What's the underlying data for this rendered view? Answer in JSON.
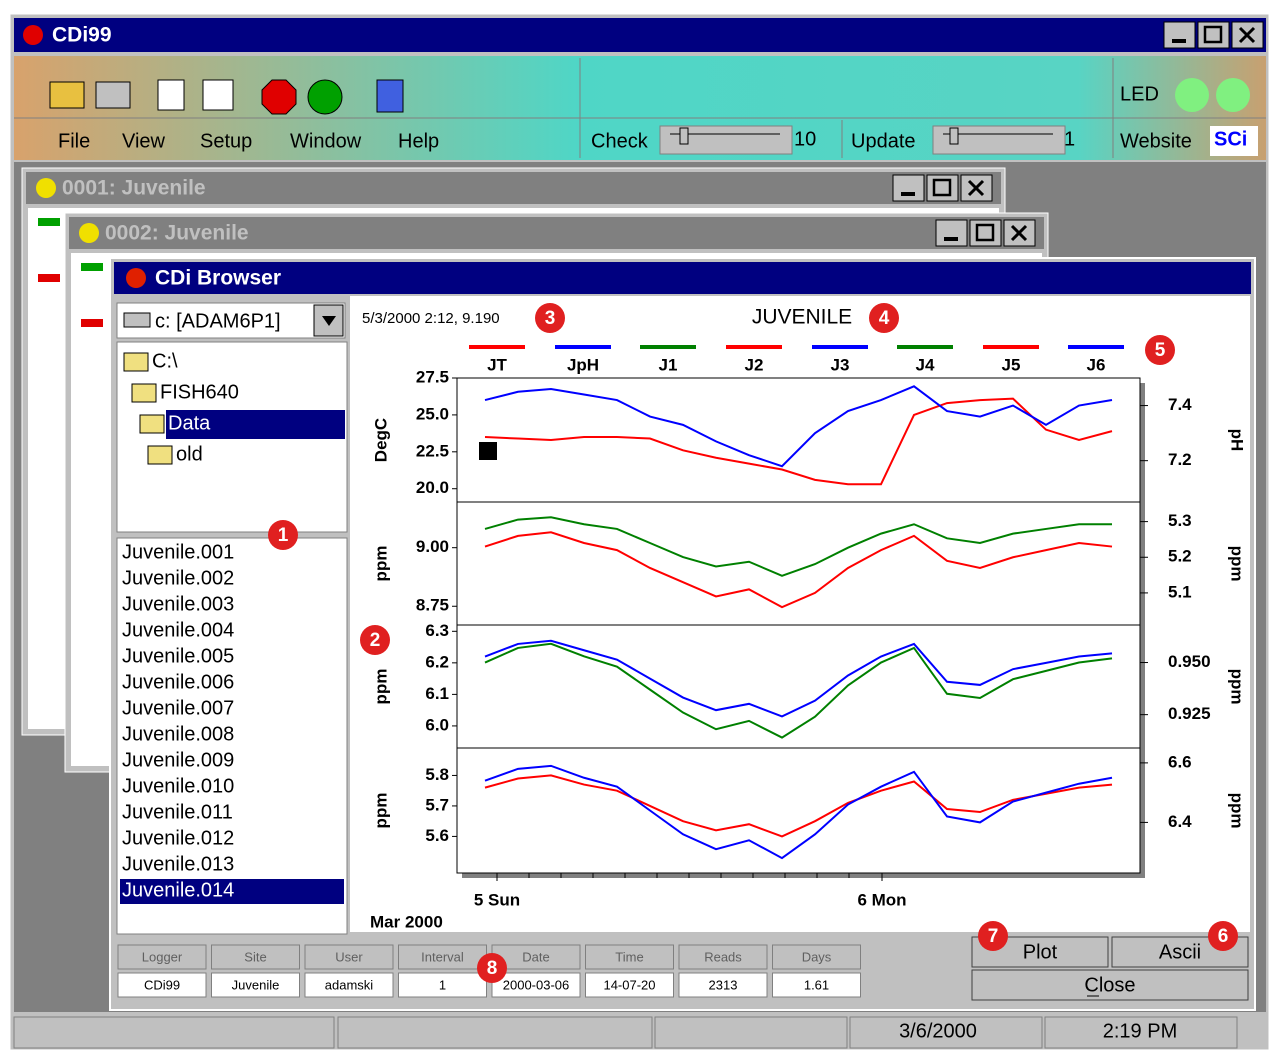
{
  "window": {
    "title": "CDi99"
  },
  "toolbar": {
    "led_label": "LED",
    "menu": [
      "File",
      "View",
      "Setup",
      "Window",
      "Help"
    ],
    "check_label": "Check",
    "check_value": 10,
    "update_label": "Update",
    "update_value": 1,
    "website_label": "Website",
    "website_logo": "SCi"
  },
  "child_windows": [
    "0001: Juvenile",
    "0002: Juvenile"
  ],
  "browser": {
    "title": "CDi Browser",
    "drive": "c: [ADAM6P1]",
    "tree": [
      "C:\\",
      "FISH640",
      "Data",
      "old"
    ],
    "tree_selected": 2,
    "files": [
      "Juvenile.001",
      "Juvenile.002",
      "Juvenile.003",
      "Juvenile.004",
      "Juvenile.005",
      "Juvenile.006",
      "Juvenile.007",
      "Juvenile.008",
      "Juvenile.009",
      "Juvenile.010",
      "Juvenile.011",
      "Juvenile.012",
      "Juvenile.013",
      "Juvenile.014"
    ],
    "files_selected": 13,
    "buttons": [
      "Plot",
      "Ascii",
      "Close"
    ],
    "info_table": {
      "headers": [
        "Logger",
        "Site",
        "User",
        "Interval",
        "Date",
        "Time",
        "Reads",
        "Days"
      ],
      "values": [
        "CDi99",
        "Juvenile",
        "adamski",
        1,
        "2000-03-06",
        "14-07-20",
        2313,
        1.61
      ]
    }
  },
  "callouts": [
    1,
    2,
    3,
    4,
    5,
    6,
    7,
    8
  ],
  "status": {
    "date": "3/6/2000",
    "time": "2:19 PM"
  },
  "chart_data": {
    "type": "line",
    "title": "JUVENILE",
    "cursor_readout": "5/3/2000 2:12, 9.190",
    "x_labels": [
      "5 Sun",
      "6 Mon"
    ],
    "x_sublabel": "Mar 2000",
    "panels": [
      {
        "ylabel": "DegC",
        "y2label": "pH",
        "ylim": [
          19.1,
          27.5
        ],
        "yticks": [
          {
            "value": 20,
            "label": "20.0"
          },
          22.5,
          {
            "value": 25,
            "label": "25.0"
          },
          27.5
        ],
        "y2lim": [
          7.05,
          7.5
        ],
        "y2ticks": [
          7.2,
          7.4
        ],
        "series": [
          {
            "name": "JT",
            "color": "#ff0000",
            "values": [
              23.5,
              23.4,
              23.3,
              23.5,
              23.5,
              23.4,
              22.6,
              22.1,
              21.7,
              21.3,
              20.6,
              20.3,
              20.3,
              25.0,
              25.8,
              26.0,
              26.1,
              24.0,
              23.3,
              23.9
            ]
          },
          {
            "name": "JpH",
            "color": "#0000ff",
            "axis": "y2",
            "values": [
              7.42,
              7.45,
              7.46,
              7.44,
              7.42,
              7.36,
              7.33,
              7.27,
              7.22,
              7.18,
              7.3,
              7.38,
              7.42,
              7.47,
              7.38,
              7.36,
              7.4,
              7.33,
              7.4,
              7.42
            ]
          }
        ]
      },
      {
        "ylabel": "ppm",
        "y2label": "ppm",
        "ylim": [
          8.67,
          9.195
        ],
        "yticks": [
          8.75,
          {
            "value": 9,
            "label": "9.00"
          }
        ],
        "y2lim": [
          5.01,
          5.355
        ],
        "y2ticks": [
          5.1,
          5.2,
          5.3
        ],
        "series": [
          {
            "name": "J1",
            "color": "#008000",
            "values": [
              9.08,
              9.12,
              9.13,
              9.1,
              9.08,
              9.02,
              8.96,
              8.92,
              8.94,
              8.88,
              8.93,
              9.0,
              9.06,
              9.1,
              9.04,
              9.02,
              9.06,
              9.08,
              9.1,
              9.1
            ]
          },
          {
            "name": "J2",
            "color": "#ff0000",
            "axis": "y2",
            "values": [
              5.23,
              5.26,
              5.27,
              5.24,
              5.22,
              5.17,
              5.13,
              5.09,
              5.11,
              5.06,
              5.1,
              5.17,
              5.22,
              5.26,
              5.19,
              5.17,
              5.2,
              5.22,
              5.24,
              5.23
            ]
          }
        ]
      },
      {
        "ylabel": "ppm",
        "y2label": "ppm",
        "ylim": [
          5.93,
          6.32
        ],
        "yticks": [
          {
            "value": 6,
            "label": "6.0"
          },
          6.1,
          6.2,
          6.3
        ],
        "y2lim": [
          0.909,
          0.968
        ],
        "y2ticks": [
          0.925,
          {
            "value": 0.95,
            "label": "0.950"
          }
        ],
        "series": [
          {
            "name": "J3",
            "color": "#0000ff",
            "values": [
              6.22,
              6.26,
              6.27,
              6.24,
              6.21,
              6.15,
              6.09,
              6.05,
              6.07,
              6.03,
              6.08,
              6.16,
              6.22,
              6.26,
              6.14,
              6.13,
              6.18,
              6.2,
              6.22,
              6.23
            ]
          },
          {
            "name": "J4",
            "color": "#008000",
            "axis": "y2",
            "values": [
              0.95,
              0.957,
              0.959,
              0.953,
              0.948,
              0.937,
              0.926,
              0.918,
              0.922,
              0.914,
              0.924,
              0.939,
              0.95,
              0.957,
              0.935,
              0.933,
              0.942,
              0.946,
              0.95,
              0.952
            ]
          }
        ]
      },
      {
        "ylabel": "ppm",
        "y2label": "ppm",
        "ylim": [
          5.48,
          5.89
        ],
        "yticks": [
          5.6,
          5.7,
          5.8
        ],
        "y2lim": [
          6.23,
          6.65
        ],
        "y2ticks": [
          6.4,
          6.6
        ],
        "series": [
          {
            "name": "J5",
            "color": "#ff0000",
            "values": [
              5.76,
              5.79,
              5.8,
              5.77,
              5.75,
              5.7,
              5.65,
              5.62,
              5.64,
              5.6,
              5.65,
              5.71,
              5.75,
              5.78,
              5.69,
              5.68,
              5.72,
              5.74,
              5.76,
              5.77
            ]
          },
          {
            "name": "J6",
            "color": "#0000ff",
            "axis": "y2",
            "values": [
              6.54,
              6.58,
              6.59,
              6.55,
              6.52,
              6.44,
              6.36,
              6.31,
              6.34,
              6.28,
              6.36,
              6.46,
              6.52,
              6.57,
              6.42,
              6.4,
              6.47,
              6.5,
              6.53,
              6.55
            ]
          }
        ]
      }
    ]
  }
}
